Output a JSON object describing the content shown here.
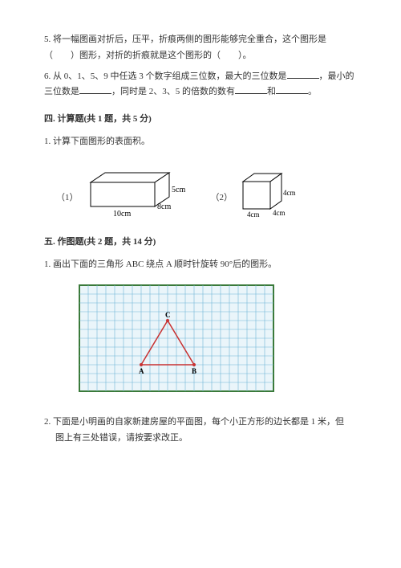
{
  "q5": {
    "text": "5. 将一幅图画对折后，压平，折痕两侧的图形能够完全重合，这个图形是（　　）图形，对折的折痕就是这个图形的（　　）。"
  },
  "q6": {
    "text_a": "6. 从 0、1、5、9 中任选 3 个数字组成三位数，最大的三位数是",
    "text_b": "，最小的三位数是",
    "text_c": "，同时是 2、3、5 的倍数的数有",
    "text_d": "和",
    "text_e": "。"
  },
  "section4": {
    "header": "四. 计算题(共 1 题，共 5 分)",
    "q1": "1. 计算下面图形的表面积。"
  },
  "cuboid": {
    "label": "（1）",
    "length": "10cm",
    "width": "8cm",
    "height": "5cm",
    "fill": "#ffffff",
    "stroke": "#000000"
  },
  "cube": {
    "label": "（2）",
    "edge1": "4cm",
    "edge2": "4cm",
    "edge3": "4cm",
    "fill": "#ffffff",
    "stroke": "#000000"
  },
  "section5": {
    "header": "五. 作图题(共 2 题，共 14 分)",
    "q1": "1. 画出下面的三角形 ABC 绕点 A 顺时针旋转 90°后的图形。",
    "q2_a": "2. 下面是小明画的自家新建房屋的平面图，每个小正方形的边长都是 1 米，但",
    "q2_b": "图上有三处错误，请按要求改正。"
  },
  "triangle_grid": {
    "grid_color": "#6fb5d6",
    "border_color": "#3a7a3a",
    "bg": "#eaf5fa",
    "triangle_color": "#c83232",
    "point_color": "#c83232",
    "labels": {
      "A": "A",
      "B": "B",
      "C": "C"
    },
    "cell": 11,
    "cols": 22,
    "rows": 12,
    "A": [
      7,
      9
    ],
    "B": [
      13,
      9
    ],
    "C": [
      10,
      4
    ]
  }
}
